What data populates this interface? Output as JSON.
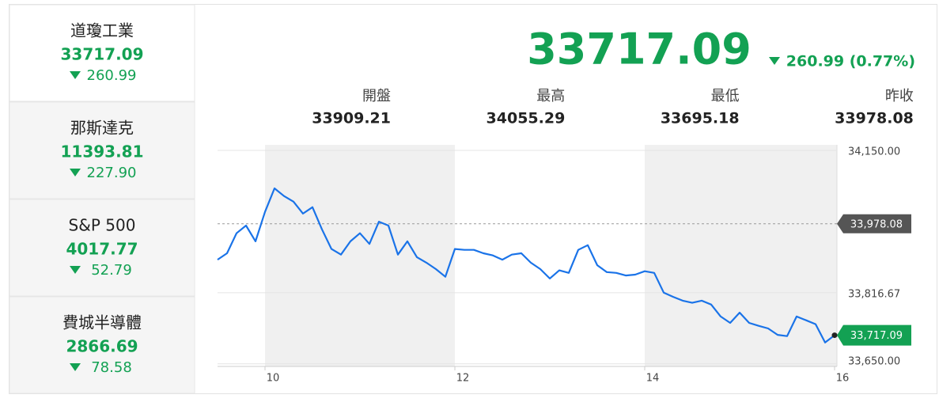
{
  "sidebar": [
    {
      "name": "道瓊工業",
      "price": "33717.09",
      "change": "260.99"
    },
    {
      "name": "那斯達克",
      "price": "11393.81",
      "change": "227.90"
    },
    {
      "name": "S&P 500",
      "price": "4017.77",
      "change": "52.79"
    },
    {
      "name": "費城半導體",
      "price": "2866.69",
      "change": "78.58"
    }
  ],
  "header": {
    "price": "33717.09",
    "change": "260.99 (0.77%)"
  },
  "stats": [
    {
      "label": "開盤",
      "value": "33909.21"
    },
    {
      "label": "最高",
      "value": "34055.29"
    },
    {
      "label": "最低",
      "value": "33695.18"
    },
    {
      "label": "昨收",
      "value": "33978.08"
    }
  ],
  "chart_data": {
    "type": "line",
    "x": [
      9.5,
      9.6,
      9.7,
      9.8,
      9.9,
      10.0,
      10.1,
      10.2,
      10.3,
      10.4,
      10.5,
      10.6,
      10.7,
      10.8,
      10.9,
      11.0,
      11.1,
      11.2,
      11.3,
      11.4,
      11.5,
      11.6,
      11.7,
      11.8,
      11.9,
      12.0,
      12.1,
      12.2,
      12.3,
      12.4,
      12.5,
      12.6,
      12.7,
      12.8,
      12.9,
      13.0,
      13.1,
      13.2,
      13.3,
      13.4,
      13.5,
      13.6,
      13.7,
      13.8,
      13.9,
      14.0,
      14.1,
      14.2,
      14.3,
      14.4,
      14.5,
      14.6,
      14.7,
      14.8,
      14.9,
      15.0,
      15.1,
      15.2,
      15.3,
      15.4,
      15.5,
      15.6,
      15.7,
      15.8,
      15.9,
      16.0
    ],
    "series": [
      {
        "color": "#1a73e8",
        "values": [
          33894,
          33909,
          33956,
          33974,
          33937,
          34006,
          34061,
          34043,
          34030,
          34002,
          34017,
          33965,
          33919,
          33906,
          33937,
          33956,
          33931,
          33983,
          33974,
          33906,
          33937,
          33900,
          33887,
          33872,
          33854,
          33919,
          33917,
          33917,
          33909,
          33904,
          33894,
          33906,
          33909,
          33887,
          33872,
          33850,
          33869,
          33863,
          33917,
          33928,
          33881,
          33865,
          33863,
          33857,
          33859,
          33867,
          33863,
          33817,
          33807,
          33798,
          33793,
          33798,
          33789,
          33761,
          33746,
          33770,
          33746,
          33739,
          33733,
          33718,
          33715,
          33761,
          33752,
          33743,
          33700,
          33717.09
        ]
      }
    ],
    "xlim": [
      9.5,
      16
    ],
    "xticks": [
      10,
      12,
      14,
      16
    ],
    "ylim": [
      33644,
      34163
    ],
    "yticks": [
      {
        "value": 33650,
        "label": "33,650.00"
      },
      {
        "value": 33816.67,
        "label": "33,816.67"
      },
      {
        "value": 34150,
        "label": "34,150.00"
      }
    ],
    "grid": true,
    "reference_line": {
      "value": 33978.08,
      "label": "33,978.08"
    },
    "last_label": "33,717.09"
  }
}
